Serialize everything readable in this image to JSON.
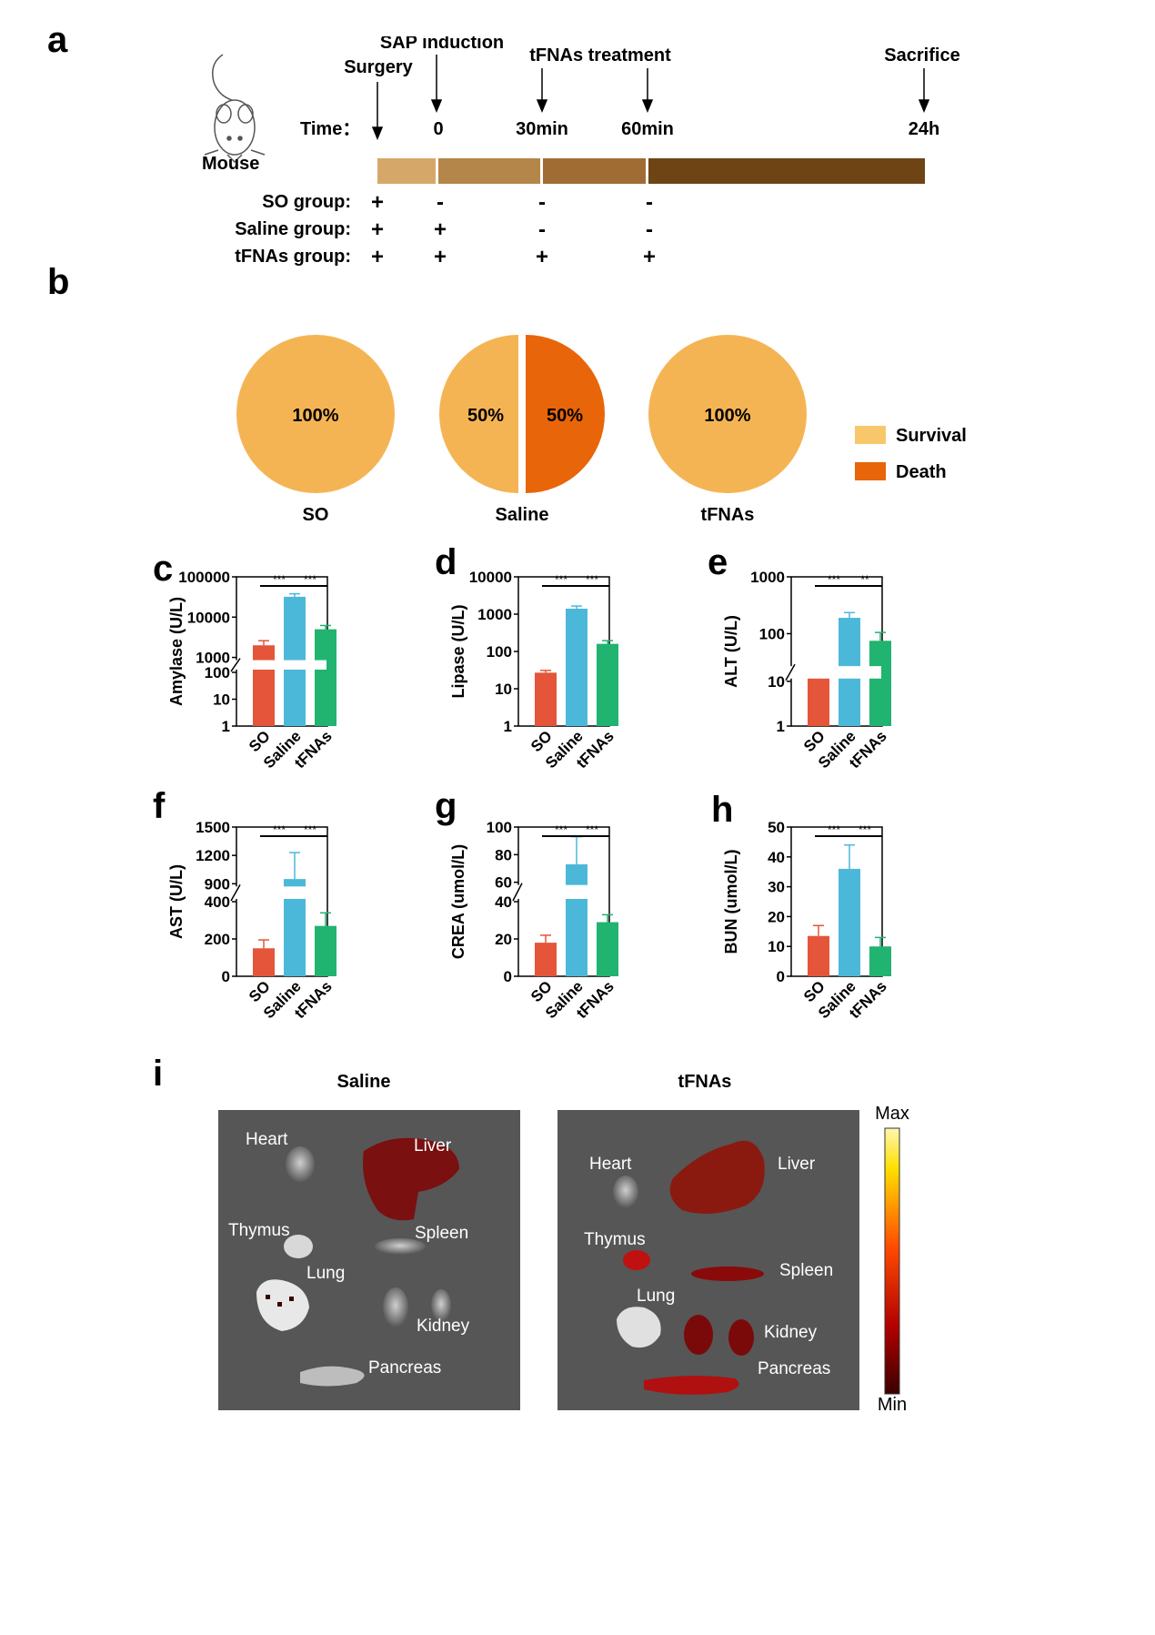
{
  "panels": {
    "a": "a",
    "b": "b",
    "c": "c",
    "d": "d",
    "e": "e",
    "f": "f",
    "g": "g",
    "h": "h",
    "i": "i"
  },
  "timeline": {
    "mouse_label": "Mouse",
    "time_label": "Time：",
    "events": [
      {
        "label": "Surgery"
      },
      {
        "label": "SAP induction"
      },
      {
        "label": "tFNAs treatment"
      },
      {
        "label": "Sacrifice"
      }
    ],
    "ticks": [
      "0",
      "30min",
      "60min",
      "24h"
    ],
    "bar_colors": [
      "#d5a86a",
      "#b58649",
      "#a06c34",
      "#6e4414"
    ],
    "groups": [
      {
        "name": "SO group:",
        "marks": [
          "+",
          "-",
          "-",
          "-"
        ]
      },
      {
        "name": "Saline group:",
        "marks": [
          "+",
          "+",
          "-",
          "-"
        ]
      },
      {
        "name": "tFNAs group:",
        "marks": [
          "+",
          "+",
          "+",
          "+"
        ]
      }
    ]
  },
  "colors": {
    "survival": "#f5b454",
    "death": "#e8650a",
    "so": "#e4553a",
    "saline": "#4cb8d9",
    "tfnas": "#21b370"
  },
  "chart_data": [
    {
      "id": "b",
      "type": "pie",
      "legend": [
        "Survival",
        "Death"
      ],
      "pies": [
        {
          "label": "SO",
          "slices": [
            {
              "name": "Survival",
              "value": 100,
              "text": "100%"
            }
          ]
        },
        {
          "label": "Saline",
          "slices": [
            {
              "name": "Survival",
              "value": 50,
              "text": "50%"
            },
            {
              "name": "Death",
              "value": 50,
              "text": "50%"
            }
          ]
        },
        {
          "label": "tFNAs",
          "slices": [
            {
              "name": "Survival",
              "value": 100,
              "text": "100%"
            }
          ]
        }
      ]
    },
    {
      "id": "c",
      "type": "bar",
      "ylabel": "Amylase (U/L)",
      "scale": "log-broken",
      "categories": [
        "SO",
        "Saline",
        "tFNAs"
      ],
      "values": [
        2000,
        32000,
        5000
      ],
      "errors": [
        2600,
        38000,
        6200
      ],
      "yticks": [
        "100000",
        "10000",
        "1000",
        "100",
        "10",
        "1"
      ],
      "significance": [
        "***",
        "***"
      ]
    },
    {
      "id": "d",
      "type": "bar",
      "ylabel": "Lipase (U/L)",
      "scale": "log",
      "categories": [
        "SO",
        "Saline",
        "tFNAs"
      ],
      "values": [
        27,
        1400,
        160
      ],
      "errors": [
        31,
        1650,
        195
      ],
      "yticks": [
        "10000",
        "1000",
        "100",
        "10",
        "1"
      ],
      "significance": [
        "***",
        "***"
      ]
    },
    {
      "id": "e",
      "type": "bar",
      "ylabel": "ALT (U/L)",
      "scale": "log-broken",
      "categories": [
        "SO",
        "Saline",
        "tFNAs"
      ],
      "values": [
        12,
        190,
        75
      ],
      "errors": [
        20,
        235,
        105
      ],
      "yticks": [
        "1000",
        "100",
        "10",
        "1"
      ],
      "significance": [
        "***",
        "**"
      ]
    },
    {
      "id": "f",
      "type": "bar",
      "ylabel": "AST (U/L)",
      "scale": "broken",
      "categories": [
        "SO",
        "Saline",
        "tFNAs"
      ],
      "values": [
        150,
        950,
        270
      ],
      "errors": [
        195,
        1230,
        340
      ],
      "yticks": [
        "1500",
        "1200",
        "900",
        "400",
        "200",
        "0"
      ],
      "significance": [
        "***",
        "***"
      ]
    },
    {
      "id": "g",
      "type": "bar",
      "ylabel": "CREA (umol/L)",
      "scale": "broken",
      "categories": [
        "SO",
        "Saline",
        "tFNAs"
      ],
      "values": [
        18,
        73,
        29
      ],
      "errors": [
        22,
        93,
        33
      ],
      "yticks": [
        "100",
        "80",
        "60",
        "40",
        "20",
        "0"
      ],
      "significance": [
        "***",
        "***"
      ]
    },
    {
      "id": "h",
      "type": "bar",
      "ylabel": "BUN (umol/L)",
      "scale": "linear",
      "categories": [
        "SO",
        "Saline",
        "tFNAs"
      ],
      "values": [
        13.5,
        36,
        10
      ],
      "errors": [
        17,
        44,
        13
      ],
      "yticks": [
        "50",
        "40",
        "30",
        "20",
        "10",
        "0"
      ],
      "ylim": [
        0,
        50
      ],
      "significance": [
        "***",
        "***"
      ]
    }
  ],
  "imaging": {
    "titles": [
      "Saline",
      "tFNAs"
    ],
    "saline_labels": [
      "Heart",
      "Liver",
      "Thymus",
      "Spleen",
      "Lung",
      "Kidney",
      "Pancreas"
    ],
    "tfnas_labels": [
      "Heart",
      "Liver",
      "Thymus",
      "Spleen",
      "Lung",
      "Kidney",
      "Pancreas"
    ],
    "scale_max": "Max",
    "scale_min": "Min"
  }
}
